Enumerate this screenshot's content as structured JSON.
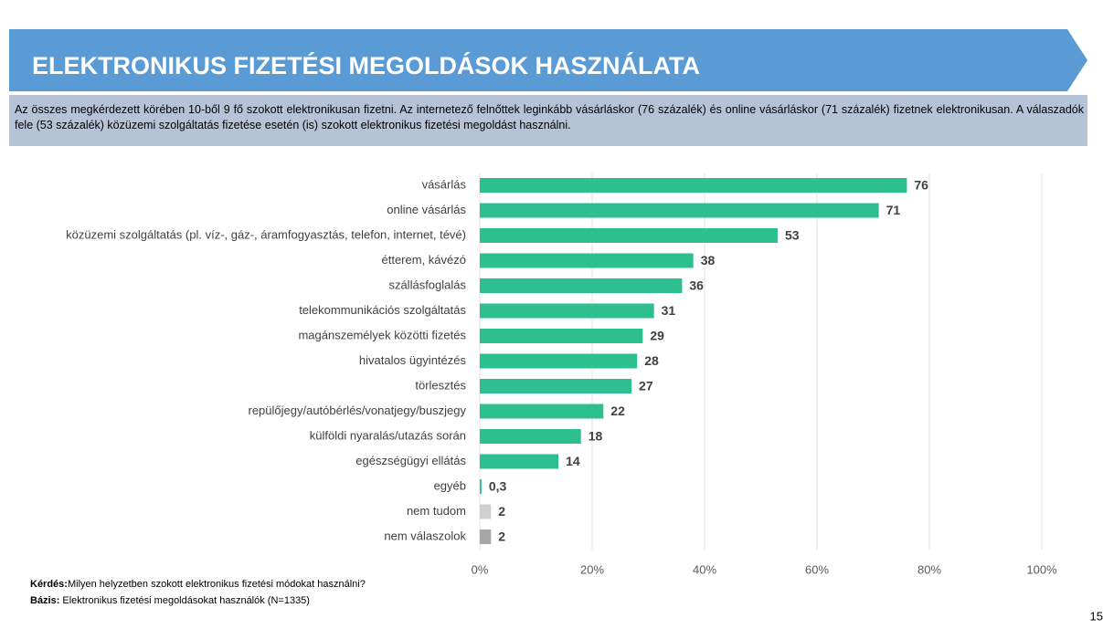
{
  "header": {
    "title": "ELEKTRONIKUS FIZETÉSI MEGOLDÁSOK HASZNÁLATA",
    "subtitle": "Az összes megkérdezett körében 10-ből 9 fő szokott elektronikusan fizetni. Az internetező felnőttek leginkább vásárláskor (76 százalék) és online vásárláskor (71 százalék) fizetnek elektronikusan. A válaszadók fele (53 százalék) közüzemi szolgáltatás fizetése esetén (is) szokott elektronikus fizetési megoldást használni."
  },
  "chart_data": {
    "type": "hbar",
    "categories": [
      "vásárlás",
      "online vásárlás",
      "közüzemi szolgáltatás (pl. víz-, gáz-, áramfogyasztás, telefon, internet, tévé)",
      "étterem, kávézó",
      "szállásfoglalás",
      "telekommunikációs szolgáltatás",
      "magánszemélyek közötti fizetés",
      "hivatalos ügyintézés",
      "törlesztés",
      "repülőjegy/autóbérlés/vonatjegy/buszjegy",
      "külföldi nyaralás/utazás során",
      "egészségügyi ellátás",
      "egyéb",
      "nem tudom",
      "nem válaszolok"
    ],
    "values": [
      76,
      71,
      53,
      38,
      36,
      31,
      29,
      28,
      27,
      22,
      18,
      14,
      0.3,
      2,
      2
    ],
    "value_labels": [
      "76",
      "71",
      "53",
      "38",
      "36",
      "31",
      "29",
      "28",
      "27",
      "22",
      "18",
      "14",
      "0,3",
      "2",
      "2"
    ],
    "colors": [
      "#2dbf8f",
      "#2dbf8f",
      "#2dbf8f",
      "#2dbf8f",
      "#2dbf8f",
      "#2dbf8f",
      "#2dbf8f",
      "#2dbf8f",
      "#2dbf8f",
      "#2dbf8f",
      "#2dbf8f",
      "#2dbf8f",
      "#2dbf8f",
      "#d0d0d0",
      "#a6a6a6"
    ],
    "xlim": [
      0,
      100
    ],
    "xticks": [
      {
        "value": 0,
        "label": "0%"
      },
      {
        "value": 20,
        "label": "20%"
      },
      {
        "value": 40,
        "label": "40%"
      },
      {
        "value": 60,
        "label": "60%"
      },
      {
        "value": 80,
        "label": "80%"
      },
      {
        "value": 100,
        "label": "100%"
      }
    ],
    "grid": true
  },
  "footnotes": [
    {
      "label": "Kérdés:",
      "text": "Milyen helyzetben szokott elektronikus fizetési módokat használni?"
    },
    {
      "label": "Bázis:",
      "text": "Elektronikus fizetési megoldásokat használók (N=1335)"
    }
  ],
  "page_number": "15"
}
